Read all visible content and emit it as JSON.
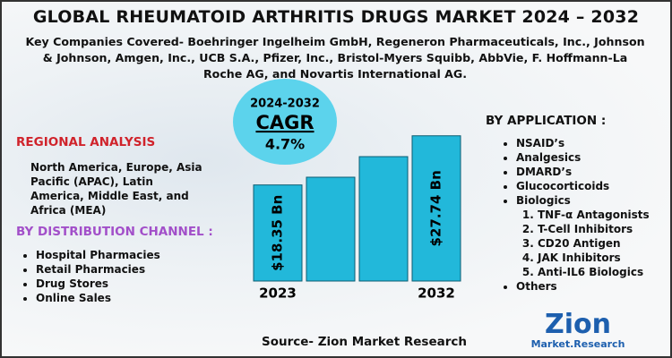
{
  "header": {
    "title": "GLOBAL RHEUMATOID ARTHRITIS DRUGS MARKET 2024 – 2032",
    "subtitle": "Key Companies Covered- Boehringer Ingelheim GmbH, Regeneron Pharmaceuticals, Inc., Johnson & Johnson, Amgen, Inc., UCB S.A., Pfizer, Inc., Bristol-Myers Squibb, AbbVie, F. Hoffmann-La Roche AG, and Novartis International AG."
  },
  "cagr": {
    "period": "2024-2032",
    "label": "CAGR",
    "value": "4.7%"
  },
  "market_size": {
    "bars": [
      {
        "year": "2023",
        "value": 18.35,
        "label": "$18.35 Bn"
      },
      {
        "year": "2032",
        "value": 27.74,
        "label": "$27.74 Bn"
      }
    ]
  },
  "regional_analysis": {
    "title": "REGIONAL ANALYSIS",
    "text": "North America, Europe, Asia Pacific (APAC), Latin America, Middle East, and Africa (MEA)"
  },
  "distribution_channel": {
    "title": "BY DISTRIBUTION CHANNEL :",
    "items": [
      "Hospital Pharmacies",
      "Retail Pharmacies",
      "Drug Stores",
      "Online Sales"
    ]
  },
  "application": {
    "title": "BY APPLICATION :",
    "items": [
      "NSAID’s",
      "Analgesics",
      "DMARD’s",
      "Glucocorticoids",
      "Biologics"
    ],
    "biologics_items": [
      "TNF-α Antagonists",
      "T-Cell Inhibitors",
      "CD20 Antigen",
      "JAK Inhibitors",
      "Anti-IL6 Biologics"
    ],
    "other": "Others"
  },
  "source": "Source- Zion Market Research",
  "logo": {
    "name": "Zion",
    "tagline": "Market.Research"
  }
}
